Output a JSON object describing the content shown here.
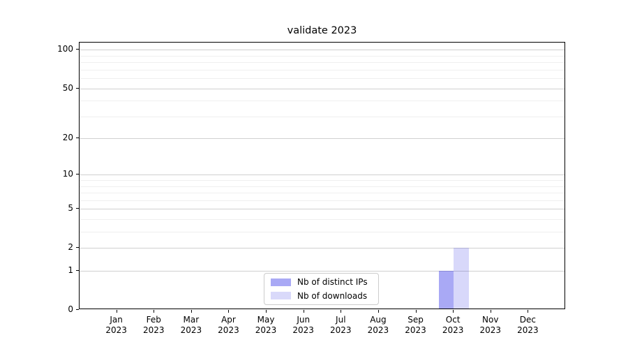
{
  "chart_data": {
    "type": "bar",
    "title": "validate 2023",
    "categories": [
      {
        "month": "Jan",
        "year": "2023"
      },
      {
        "month": "Feb",
        "year": "2023"
      },
      {
        "month": "Mar",
        "year": "2023"
      },
      {
        "month": "Apr",
        "year": "2023"
      },
      {
        "month": "May",
        "year": "2023"
      },
      {
        "month": "Jun",
        "year": "2023"
      },
      {
        "month": "Jul",
        "year": "2023"
      },
      {
        "month": "Aug",
        "year": "2023"
      },
      {
        "month": "Sep",
        "year": "2023"
      },
      {
        "month": "Oct",
        "year": "2023"
      },
      {
        "month": "Nov",
        "year": "2023"
      },
      {
        "month": "Dec",
        "year": "2023"
      }
    ],
    "series": [
      {
        "name": "Nb of distinct IPs",
        "swatch_color": "#a9a9f5",
        "fill": "rgba(10,10,225,0.35)",
        "values": [
          0,
          0,
          0,
          0,
          0,
          0,
          0,
          0,
          0,
          1,
          0,
          0
        ]
      },
      {
        "name": "Nb of downloads",
        "swatch_color": "#d9d9fa",
        "fill": "rgba(10,10,225,0.16)",
        "values": [
          0,
          0,
          0,
          0,
          0,
          0,
          0,
          0,
          0,
          2,
          0,
          0
        ]
      }
    ],
    "xlabel": "",
    "ylabel": "",
    "yscale": "log1p",
    "ylim": [
      0,
      114
    ],
    "yticks": [
      0,
      1,
      2,
      5,
      10,
      20,
      50,
      100
    ],
    "yticks_minor": [
      3,
      4,
      6,
      7,
      8,
      9,
      30,
      40,
      60,
      70,
      80,
      90
    ],
    "grid": true,
    "legend_position": "lower center, inside axes",
    "colors": {
      "grid_major": "#d0d0d0",
      "grid_minor": "#efefef",
      "axis": "#000000",
      "background": "#ffffff"
    }
  }
}
